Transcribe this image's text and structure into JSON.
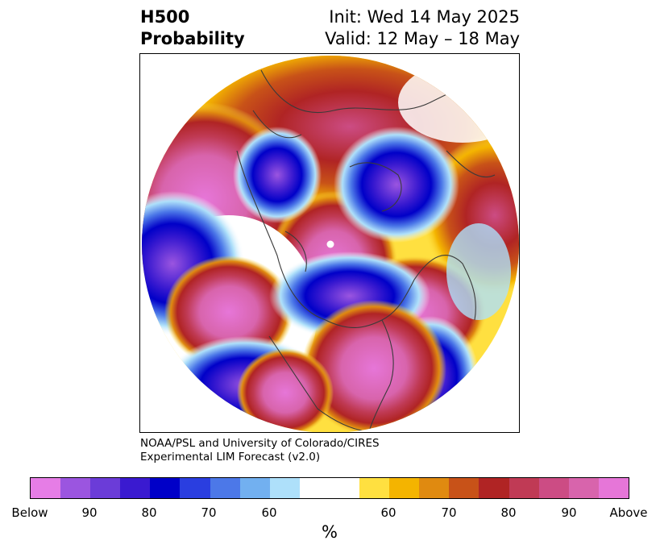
{
  "title": {
    "left_line1": "H500",
    "left_line2": "Probability",
    "right_line1": "Init: Wed 14 May 2025",
    "right_line2": "Valid: 12 May – 18 May"
  },
  "credit": {
    "line1": "NOAA/PSL and University of Colorado/CIRES",
    "line2": "Experimental LIM Forecast (v2.0)"
  },
  "colorbar": {
    "unit_label": "%",
    "colors": [
      "#e67de6",
      "#9b55e0",
      "#6b3cd8",
      "#3a1ad0",
      "#0000c8",
      "#2a3ee0",
      "#4c78e8",
      "#72b0f0",
      "#aee0fa",
      "#ffffff",
      "#ffe040",
      "#f4b400",
      "#e08a10",
      "#c85218",
      "#b02424",
      "#c03a55",
      "#cc4c84",
      "#d864ac",
      "#e676d8"
    ],
    "tick_labels": [
      "Below",
      "90",
      "80",
      "70",
      "60",
      "60",
      "70",
      "80",
      "90",
      "Above"
    ]
  },
  "map": {
    "description_colors": {
      "above_strong": "#e676d8",
      "above_mid": "#cc4c84",
      "above_low": "#b02424",
      "warm_edge": "#f4b400",
      "below_strong": "#9b55e0",
      "below_mid": "#0000c8",
      "below_low": "#72b0f0"
    }
  }
}
